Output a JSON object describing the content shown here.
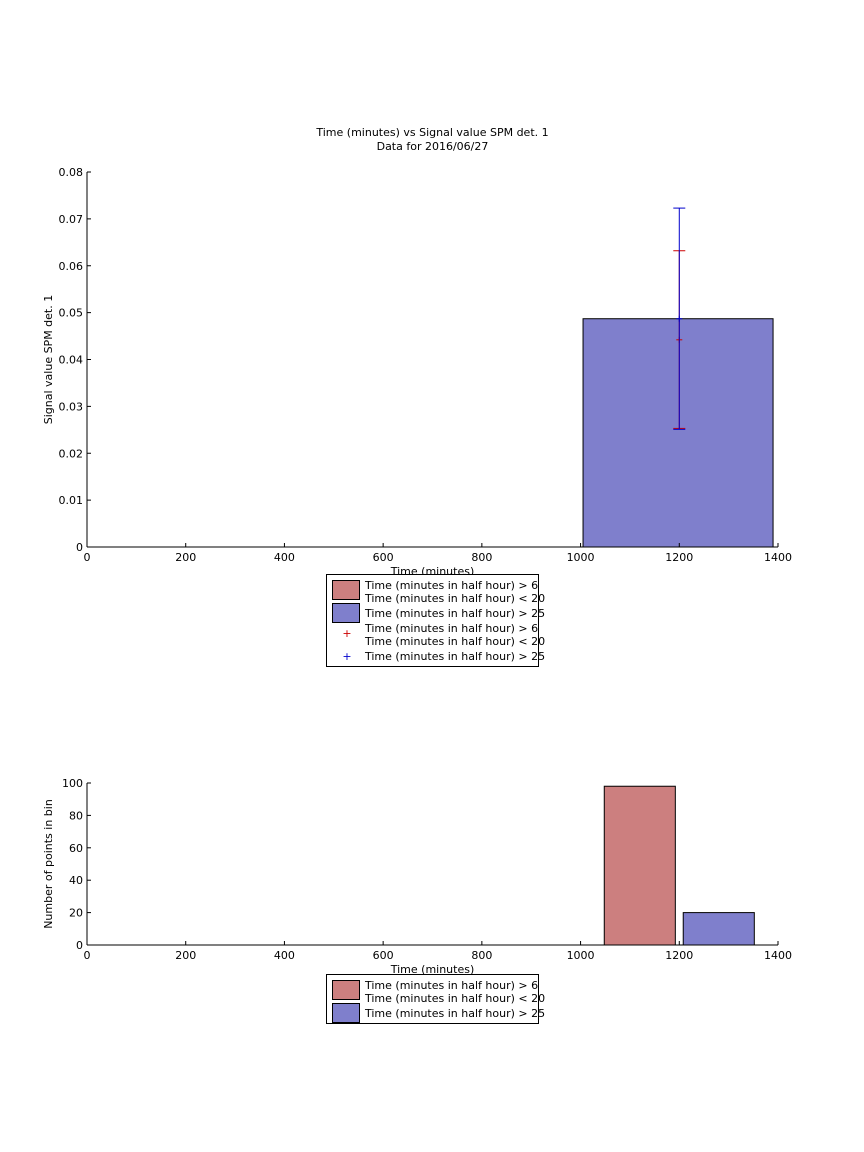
{
  "chart_data": [
    {
      "type": "bar",
      "title": "Time (minutes) vs Signal value SPM det. 1",
      "subtitle": "Data for 2016/06/27",
      "xlabel": "Time (minutes)",
      "ylabel": "Signal value SPM det. 1",
      "xlim": [
        0,
        1400
      ],
      "ylim": [
        0,
        0.08
      ],
      "xticks": [
        "0",
        "200",
        "400",
        "600",
        "800",
        "1000",
        "1200",
        "1400"
      ],
      "yticks": [
        "0",
        "0.01",
        "0.02",
        "0.03",
        "0.04",
        "0.05",
        "0.06",
        "0.07",
        "0.08"
      ],
      "grid": false,
      "legend_position": "below",
      "series": [
        {
          "name": "Time (minutes in half hour) > 6\nTime (minutes in half hour) < 20",
          "color": "#cc7f7f",
          "bars": []
        },
        {
          "name": "Time (minutes in half hour) > 25",
          "color": "#7f7fcc",
          "bars": [
            {
              "x0": 1005,
              "x1": 1390,
              "value": 0.0487
            }
          ]
        }
      ],
      "errorbars": [
        {
          "name": "Time (minutes in half hour) > 6\nTime (minutes in half hour) < 20",
          "color": "#cc0000",
          "marker": "+",
          "points": [
            {
              "x": 1200,
              "y": 0.0442,
              "low": 0.0253,
              "high": 0.0632
            }
          ]
        },
        {
          "name": "Time (minutes in half hour) > 25",
          "color": "#0000cc",
          "marker": "+",
          "points": [
            {
              "x": 1200,
              "y": 0.0487,
              "low": 0.0251,
              "high": 0.0723
            }
          ]
        }
      ],
      "legend": [
        {
          "kind": "patch",
          "color": "#cc7f7f",
          "lines": [
            "Time (minutes in half hour) > 6",
            "Time (minutes in half hour) < 20"
          ]
        },
        {
          "kind": "patch",
          "color": "#7f7fcc",
          "lines": [
            "Time (minutes in half hour) > 25"
          ]
        },
        {
          "kind": "marker",
          "color": "#cc0000",
          "lines": [
            "Time (minutes in half hour) > 6",
            "Time (minutes in half hour) < 20"
          ]
        },
        {
          "kind": "marker",
          "color": "#0000cc",
          "lines": [
            "Time (minutes in half hour) > 25"
          ]
        }
      ]
    },
    {
      "type": "bar",
      "title": "",
      "xlabel": "Time (minutes)",
      "ylabel": "Number of points in bin",
      "xlim": [
        0,
        1400
      ],
      "ylim": [
        0,
        100
      ],
      "xticks": [
        "0",
        "200",
        "400",
        "600",
        "800",
        "1000",
        "1200",
        "1400"
      ],
      "yticks": [
        "0",
        "20",
        "40",
        "60",
        "80",
        "100"
      ],
      "grid": false,
      "legend_position": "below",
      "series": [
        {
          "name": "Time (minutes in half hour) > 6\nTime (minutes in half hour) < 20",
          "color": "#cc7f7f",
          "bars": [
            {
              "x0": 1048,
              "x1": 1192,
              "value": 98
            }
          ]
        },
        {
          "name": "Time (minutes in half hour) > 25",
          "color": "#7f7fcc",
          "bars": [
            {
              "x0": 1208,
              "x1": 1352,
              "value": 20
            }
          ]
        }
      ],
      "legend": [
        {
          "kind": "patch",
          "color": "#cc7f7f",
          "lines": [
            "Time (minutes in half hour) > 6",
            "Time (minutes in half hour) < 20"
          ]
        },
        {
          "kind": "patch",
          "color": "#7f7fcc",
          "lines": [
            "Time (minutes in half hour) > 25"
          ]
        }
      ]
    }
  ]
}
